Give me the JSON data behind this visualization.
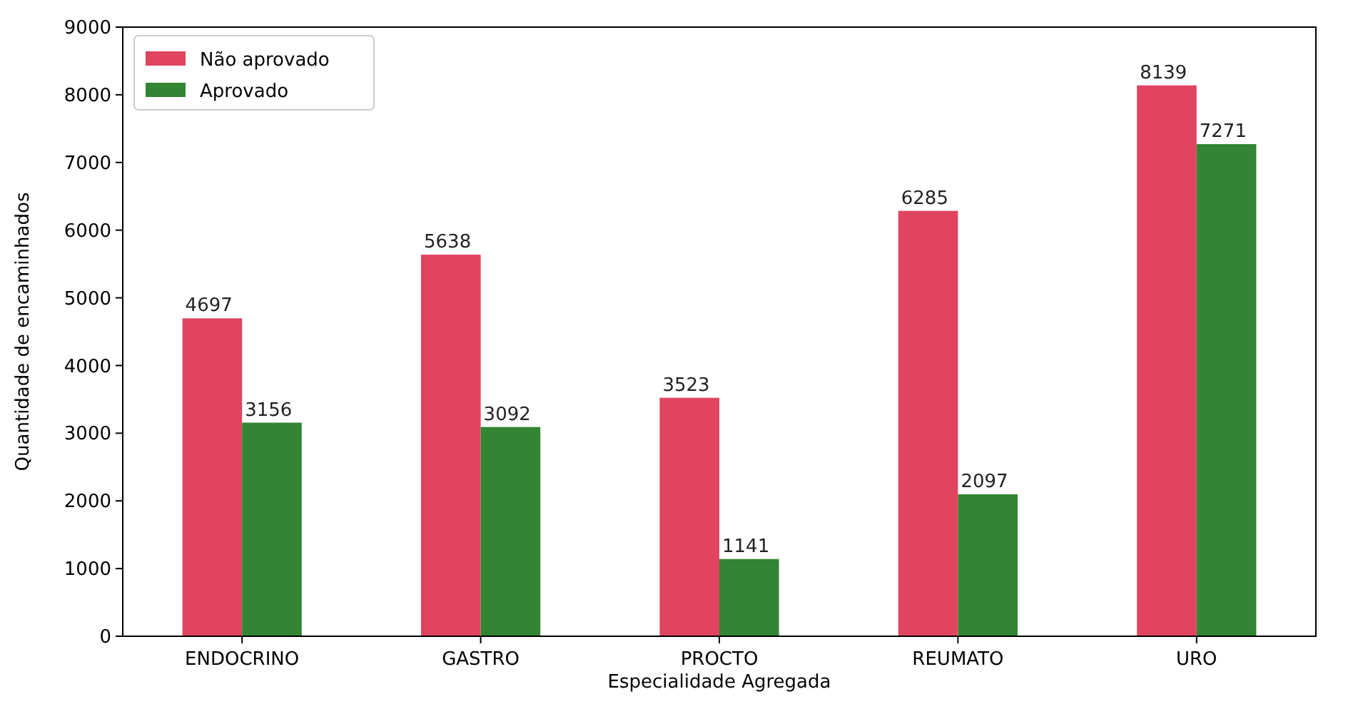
{
  "chart_data": {
    "type": "bar",
    "xlabel": "Especialidade Agregada",
    "ylabel": "Quantidade de encaminhados",
    "categories": [
      "ENDOCRINO",
      "GASTRO",
      "PROCTO",
      "REUMATO",
      "URO"
    ],
    "series": [
      {
        "name": "Não aprovado",
        "color": "#e0445f",
        "values": [
          4697,
          5638,
          3523,
          6285,
          8139
        ]
      },
      {
        "name": "Aprovado",
        "color": "#338433",
        "values": [
          3156,
          3092,
          1141,
          2097,
          7271
        ]
      }
    ],
    "ylim": [
      0,
      9000
    ],
    "yticks": [
      0,
      1000,
      2000,
      3000,
      4000,
      5000,
      6000,
      7000,
      8000,
      9000
    ],
    "data_labels": true,
    "legend": "top left",
    "grid": false
  }
}
